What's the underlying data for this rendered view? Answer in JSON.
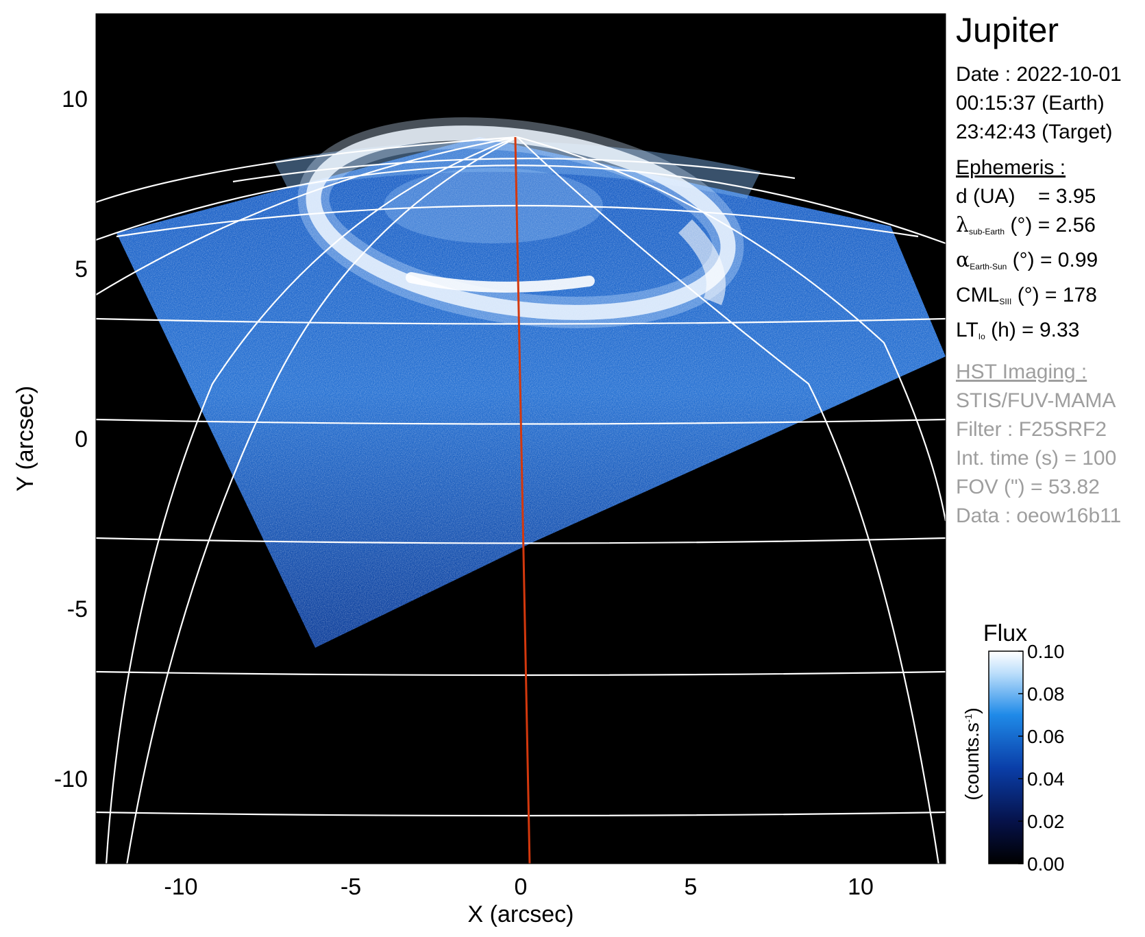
{
  "figure": {
    "title": "Jupiter",
    "date": {
      "line1": "Date : 2022-10-01",
      "line2": "00:15:37 (Earth)",
      "line3": "23:42:43 (Target)"
    },
    "ephemeris": {
      "header": "Ephemeris :",
      "d": {
        "label": "d (UA)",
        "value": "= 3.95"
      },
      "lambda": {
        "symbol": "λ",
        "sub": "sub-Earth",
        "unit": " (°)",
        "value": " = 2.56"
      },
      "alpha": {
        "symbol": "α",
        "sub": "Earth-Sun",
        "unit": " (°)",
        "value": " = 0.99"
      },
      "cml": {
        "symbol": "CML",
        "sub": "SIII",
        "unit": " (°)",
        "value": " = 178"
      },
      "lt": {
        "symbol": "LT",
        "sub": "Io",
        "unit": " (h)",
        "value": " = 9.33"
      }
    },
    "hst": {
      "header": "HST Imaging :",
      "instrument": "STIS/FUV-MAMA",
      "filter": "Filter : F25SRF2",
      "int_time": "Int. time (s) = 100",
      "fov": "FOV (\") = 53.82",
      "data": "Data : oeow16b11"
    },
    "x_axis_label": "X (arcsec)",
    "y_axis_label": "Y (arcsec)",
    "x_ticks": [
      "-10",
      "-5",
      "0",
      "5",
      "10"
    ],
    "y_ticks": [
      "10",
      "5",
      "0",
      "-5",
      "-10"
    ],
    "x_tick_values": [
      -10,
      -5,
      0,
      5,
      10
    ],
    "y_tick_values": [
      10,
      5,
      0,
      -5,
      -10
    ],
    "xlim": [
      -12.5,
      12.5
    ],
    "ylim": [
      -12.5,
      12.5
    ],
    "colorbar": {
      "title": "Flux",
      "unit_label": "(counts.s",
      "unit_sup": "-1",
      "unit_close": ")",
      "ticks": [
        "0.10",
        "0.08",
        "0.06",
        "0.04",
        "0.02",
        "0.00"
      ],
      "tick_values": [
        0.1,
        0.08,
        0.06,
        0.04,
        0.02,
        0.0
      ],
      "range": [
        0.0,
        0.1
      ]
    },
    "colors": {
      "background": "#000000",
      "aurora_blue": "#1e63c8",
      "grid": "#ffffff",
      "central_meridian": "#d4380d"
    }
  }
}
